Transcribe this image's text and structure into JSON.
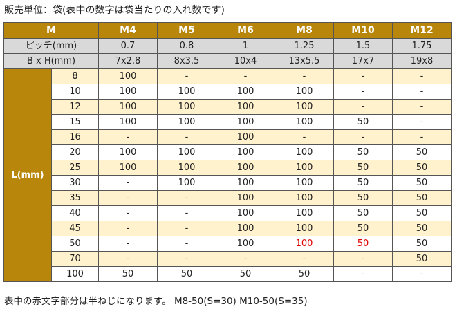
{
  "caption_top": "販売単位：袋(表中の数字は袋当たりの入れ数です)",
  "caption_bottom": "表中の赤文字部分は半ねじになります。 M8-50(S=30)  M10-50(S=35)",
  "colors": {
    "header_bg": "#b8860b",
    "subheader_bg": "#d9d9d9",
    "stripe": "#fff2cc",
    "red_text": "#e00000"
  },
  "table": {
    "corner": "M",
    "sizes": [
      "M4",
      "M5",
      "M6",
      "M8",
      "M10",
      "M12"
    ],
    "pitch_label": "ピッチ(mm)",
    "pitch": [
      "0.7",
      "0.8",
      "1",
      "1.25",
      "1.5",
      "1.75"
    ],
    "bxh_label": "B x H(mm)",
    "bxh": [
      "7x2.8",
      "8x3.5",
      "10x4",
      "13x5.5",
      "17x7",
      "19x8"
    ],
    "l_label": "L(mm)",
    "rows": [
      {
        "length": "8",
        "values": [
          "100",
          "-",
          "-",
          "-",
          "-",
          "-"
        ]
      },
      {
        "length": "10",
        "values": [
          "100",
          "100",
          "100",
          "100",
          "-",
          "-"
        ]
      },
      {
        "length": "12",
        "values": [
          "100",
          "100",
          "100",
          "100",
          "-",
          "-"
        ]
      },
      {
        "length": "15",
        "values": [
          "100",
          "100",
          "100",
          "100",
          "50",
          "-"
        ]
      },
      {
        "length": "16",
        "values": [
          "-",
          "-",
          "100",
          "-",
          "-",
          "-"
        ]
      },
      {
        "length": "20",
        "values": [
          "100",
          "100",
          "100",
          "100",
          "50",
          "50"
        ]
      },
      {
        "length": "25",
        "values": [
          "100",
          "100",
          "100",
          "100",
          "50",
          "50"
        ]
      },
      {
        "length": "30",
        "values": [
          "-",
          "100",
          "100",
          "100",
          "50",
          "50"
        ]
      },
      {
        "length": "35",
        "values": [
          "-",
          "-",
          "100",
          "100",
          "50",
          "50"
        ]
      },
      {
        "length": "40",
        "values": [
          "-",
          "-",
          "100",
          "100",
          "50",
          "50"
        ]
      },
      {
        "length": "45",
        "values": [
          "-",
          "-",
          "100",
          "100",
          "50",
          "50"
        ]
      },
      {
        "length": "50",
        "values": [
          "-",
          "-",
          "100",
          "100",
          "50",
          "50"
        ],
        "red": [
          3,
          4
        ]
      },
      {
        "length": "70",
        "values": [
          "-",
          "-",
          "-",
          "-",
          "-",
          "50"
        ]
      },
      {
        "length": "100",
        "values": [
          "50",
          "50",
          "50",
          "50",
          "-",
          "-"
        ]
      }
    ]
  }
}
